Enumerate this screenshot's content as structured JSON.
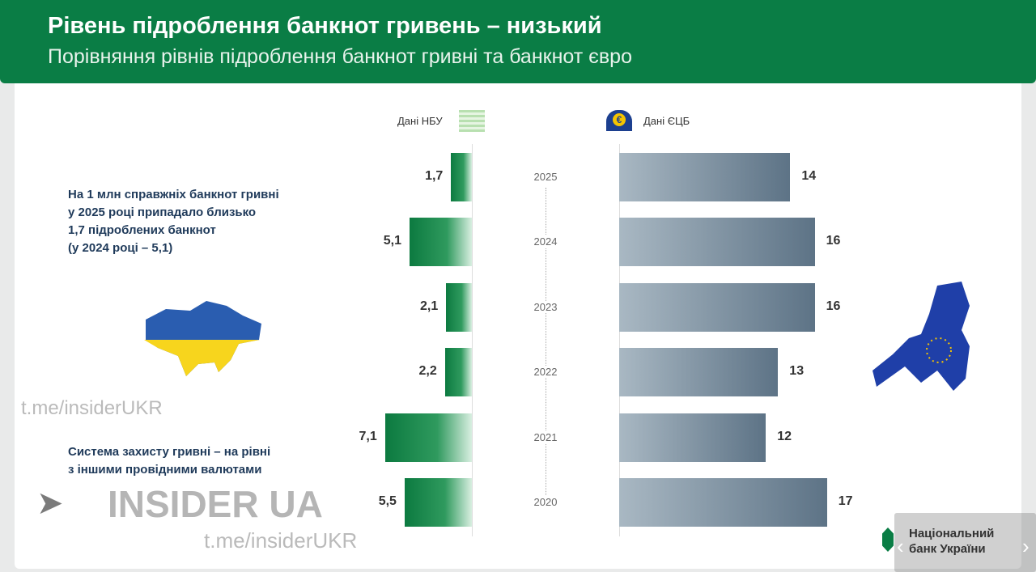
{
  "header": {
    "title": "Рівень підроблення банкнот гривень – низький",
    "subtitle": "Порівняння рівнів підроблення банкнот гривні та банкнот євро"
  },
  "notes": {
    "top": [
      "На 1 млн справжніх банкнот гривні",
      "у 2025 році припадало близько",
      "1,7 підроблених банкнот",
      "(у 2024 році – 5,1)"
    ],
    "bottom": [
      "Система захисту гривні – на рівні",
      "з іншими провідними валютами"
    ]
  },
  "logo": {
    "line1": "Національний",
    "line2": "банк України"
  },
  "watermark": {
    "brand": "INSIDER UA",
    "link": "t.me/insiderUKR"
  },
  "colors": {
    "nbu": "#0c7a40",
    "ecb": "#5d7386",
    "header": "#0a7d45"
  },
  "chart_data": {
    "type": "bar",
    "orientation": "horizontal-diverging",
    "title": "Рівень підроблення банкнот гривень – низький",
    "categories": [
      "2025",
      "2024",
      "2023",
      "2022",
      "2021",
      "2020"
    ],
    "series": [
      {
        "name": "Дані НБУ",
        "values": [
          1.7,
          5.1,
          2.1,
          2.2,
          7.1,
          5.5
        ],
        "labels": [
          "1,7",
          "5,1",
          "2,1",
          "2,2",
          "7,1",
          "5,5"
        ]
      },
      {
        "name": "Дані ЄЦБ",
        "values": [
          14,
          16,
          16,
          13,
          12,
          17
        ],
        "labels": [
          "14",
          "16",
          "16",
          "13",
          "12",
          "17"
        ]
      }
    ]
  }
}
